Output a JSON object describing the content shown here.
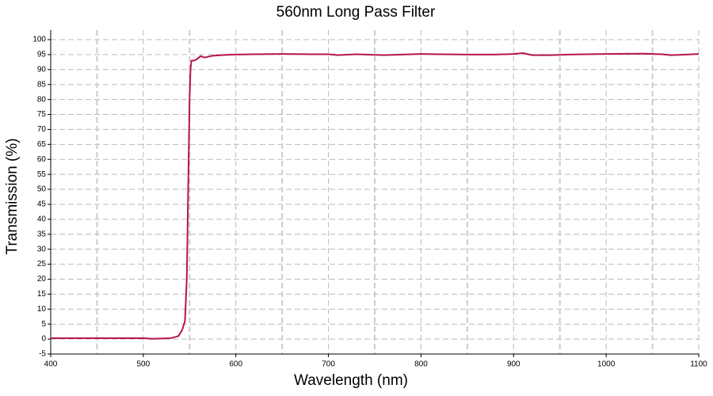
{
  "chart_data": {
    "type": "line",
    "title": "560nm Long Pass Filter",
    "x_label": "Wavelength (nm)",
    "y_label": "Transmission (%)",
    "x": [
      400,
      450,
      500,
      510,
      520,
      530,
      538,
      542,
      545,
      547,
      548,
      549,
      550,
      551,
      552,
      555,
      558,
      562,
      566,
      570,
      575,
      580,
      590,
      600,
      620,
      650,
      680,
      700,
      710,
      730,
      750,
      760,
      780,
      800,
      820,
      850,
      880,
      900,
      910,
      920,
      940,
      960,
      1000,
      1040,
      1060,
      1070,
      1080,
      1100
    ],
    "series": [
      {
        "name": "Transmission",
        "color": "#b5164a",
        "values": [
          0.3,
          0.3,
          0.3,
          0.1,
          0.2,
          0.3,
          1,
          3,
          6,
          20,
          40,
          60,
          80,
          90,
          93,
          93,
          93.5,
          94.5,
          94,
          94.3,
          94.6,
          94.7,
          94.9,
          95,
          95.1,
          95.2,
          95.1,
          95.1,
          94.8,
          95.1,
          94.9,
          94.8,
          95,
          95.2,
          95.1,
          95,
          95,
          95.2,
          95.5,
          94.8,
          94.8,
          95,
          95.2,
          95.3,
          95.1,
          94.8,
          94.9,
          95.2
        ]
      }
    ],
    "xlim": [
      400,
      1100
    ],
    "xticks": [
      400,
      500,
      600,
      700,
      800,
      900,
      1000,
      1100
    ],
    "x_minor_ticks": [
      450,
      550,
      650,
      750,
      850,
      950,
      1050
    ],
    "ylim": [
      -5,
      100
    ],
    "yticks": [
      -5,
      0,
      5,
      10,
      15,
      20,
      25,
      30,
      35,
      40,
      45,
      50,
      55,
      60,
      65,
      70,
      75,
      80,
      85,
      90,
      95,
      100
    ],
    "grid": true
  }
}
